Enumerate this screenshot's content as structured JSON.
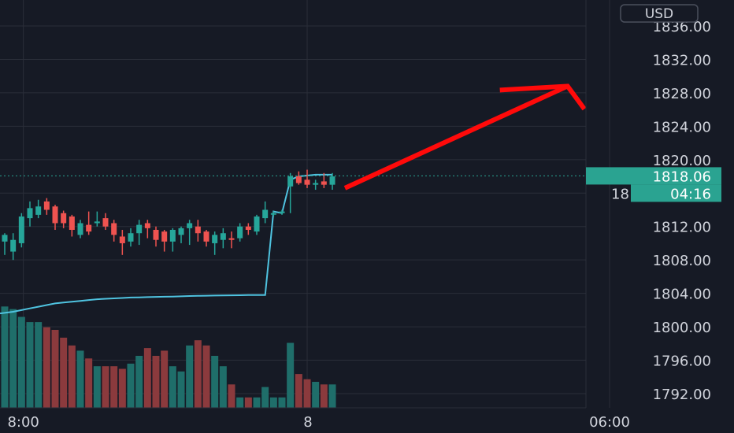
{
  "chart_data": {
    "type": "candlestick",
    "currency": "USD",
    "y_axis": {
      "min": 1790,
      "max": 1838,
      "ticks": [
        "1836.00",
        "1832.00",
        "1828.00",
        "1824.00",
        "1820.00",
        "1812.00",
        "1808.00",
        "1804.00",
        "1800.00",
        "1796.00",
        "1792.00"
      ],
      "tick_values": [
        1836,
        1832,
        1828,
        1824,
        1820,
        1812,
        1808,
        1804,
        1800,
        1796,
        1792
      ]
    },
    "x_axis": {
      "ticks": [
        {
          "label": "8:00",
          "bar": 1
        },
        {
          "label": "8",
          "bar": 36
        },
        {
          "label": "06:00",
          "bar": 72
        }
      ],
      "total_slots": 93
    },
    "current_price": {
      "value": 1818.06,
      "label": "1818.06",
      "partial_label": "18",
      "countdown": "04:16"
    },
    "candles": [
      {
        "o": 1810.2,
        "h": 1811.2,
        "l": 1808.6,
        "c": 1811.0
      },
      {
        "o": 1809.0,
        "h": 1811.2,
        "l": 1808.0,
        "c": 1810.4
      },
      {
        "o": 1810.0,
        "h": 1813.6,
        "l": 1809.5,
        "c": 1813.2
      },
      {
        "o": 1813.0,
        "h": 1815.0,
        "l": 1812.0,
        "c": 1814.2
      },
      {
        "o": 1813.4,
        "h": 1815.2,
        "l": 1813.0,
        "c": 1814.4
      },
      {
        "o": 1815.0,
        "h": 1815.4,
        "l": 1813.4,
        "c": 1814.0
      },
      {
        "o": 1814.4,
        "h": 1814.6,
        "l": 1811.6,
        "c": 1812.4
      },
      {
        "o": 1813.6,
        "h": 1813.9,
        "l": 1811.8,
        "c": 1812.4
      },
      {
        "o": 1813.2,
        "h": 1813.4,
        "l": 1810.8,
        "c": 1811.6
      },
      {
        "o": 1811.0,
        "h": 1812.8,
        "l": 1810.6,
        "c": 1812.4
      },
      {
        "o": 1812.2,
        "h": 1813.8,
        "l": 1811.0,
        "c": 1811.4
      },
      {
        "o": 1812.4,
        "h": 1813.8,
        "l": 1812.0,
        "c": 1812.6
      },
      {
        "o": 1813.0,
        "h": 1813.6,
        "l": 1811.6,
        "c": 1812.0
      },
      {
        "o": 1812.4,
        "h": 1812.8,
        "l": 1810.2,
        "c": 1811.0
      },
      {
        "o": 1810.8,
        "h": 1811.6,
        "l": 1808.6,
        "c": 1810.0
      },
      {
        "o": 1810.2,
        "h": 1811.8,
        "l": 1809.6,
        "c": 1811.2
      },
      {
        "o": 1811.2,
        "h": 1812.8,
        "l": 1809.8,
        "c": 1812.2
      },
      {
        "o": 1812.4,
        "h": 1812.8,
        "l": 1810.6,
        "c": 1811.8
      },
      {
        "o": 1811.6,
        "h": 1812.0,
        "l": 1809.6,
        "c": 1810.4
      },
      {
        "o": 1811.4,
        "h": 1811.6,
        "l": 1809.0,
        "c": 1810.2
      },
      {
        "o": 1810.2,
        "h": 1811.8,
        "l": 1809.0,
        "c": 1811.6
      },
      {
        "o": 1811.0,
        "h": 1812.0,
        "l": 1810.0,
        "c": 1811.8
      },
      {
        "o": 1811.8,
        "h": 1812.8,
        "l": 1809.8,
        "c": 1812.4
      },
      {
        "o": 1812.0,
        "h": 1812.8,
        "l": 1810.2,
        "c": 1811.2
      },
      {
        "o": 1811.4,
        "h": 1811.6,
        "l": 1809.6,
        "c": 1810.2
      },
      {
        "o": 1810.0,
        "h": 1811.4,
        "l": 1808.6,
        "c": 1811.0
      },
      {
        "o": 1810.4,
        "h": 1811.8,
        "l": 1809.4,
        "c": 1811.2
      },
      {
        "o": 1810.6,
        "h": 1811.4,
        "l": 1809.4,
        "c": 1810.4
      },
      {
        "o": 1810.6,
        "h": 1812.4,
        "l": 1810.2,
        "c": 1812.0
      },
      {
        "o": 1812.0,
        "h": 1812.4,
        "l": 1811.0,
        "c": 1811.6
      },
      {
        "o": 1811.4,
        "h": 1813.4,
        "l": 1811.0,
        "c": 1813.2
      },
      {
        "o": 1813.0,
        "h": 1815.0,
        "l": 1812.4,
        "c": 1814.0
      },
      {
        "o": 1813.6,
        "h": 1813.8,
        "l": 1813.2,
        "c": 1813.6
      },
      {
        "o": 1813.6,
        "h": 1814.0,
        "l": 1813.4,
        "c": 1813.8
      },
      {
        "o": 1816.8,
        "h": 1818.4,
        "l": 1813.6,
        "c": 1818.0
      },
      {
        "o": 1818.0,
        "h": 1818.6,
        "l": 1817.0,
        "c": 1817.2
      },
      {
        "o": 1817.6,
        "h": 1818.8,
        "l": 1816.6,
        "c": 1817.0
      },
      {
        "o": 1817.0,
        "h": 1817.6,
        "l": 1816.4,
        "c": 1817.2
      },
      {
        "o": 1817.4,
        "h": 1818.4,
        "l": 1816.6,
        "c": 1817.0
      },
      {
        "o": 1817.0,
        "h": 1818.4,
        "l": 1816.4,
        "c": 1818.0
      }
    ],
    "volume": [
      3.9,
      3.8,
      3.5,
      3.3,
      3.3,
      3.1,
      3.0,
      2.7,
      2.4,
      2.2,
      1.9,
      1.6,
      1.6,
      1.6,
      1.5,
      1.7,
      2.0,
      2.3,
      2.0,
      2.2,
      1.6,
      1.4,
      2.4,
      2.6,
      2.4,
      2.0,
      1.6,
      0.9,
      0.4,
      0.4,
      0.4,
      0.8,
      0.4,
      0.4,
      2.5,
      1.3,
      1.1,
      1.0,
      0.9,
      0.9
    ],
    "vwap": [
      1801.6,
      1801.8,
      1802.0,
      1802.2,
      1802.4,
      1802.6,
      1802.8,
      1802.9,
      1803.0,
      1803.1,
      1803.2,
      1803.3,
      1803.35,
      1803.4,
      1803.45,
      1803.5,
      1803.52,
      1803.55,
      1803.58,
      1803.6,
      1803.62,
      1803.65,
      1803.68,
      1803.7,
      1803.72,
      1803.74,
      1803.75,
      1803.77,
      1803.78,
      1803.8,
      1803.8,
      1803.8,
      1813.8,
      1813.6,
      1817.6,
      1818.0,
      1818.1,
      1818.2,
      1818.2,
      1818.2
    ],
    "annotation": {
      "type": "arrow",
      "from": {
        "bar": 40.5,
        "price": 1816.6
      },
      "to": {
        "bar": 67,
        "price": 1828.8
      },
      "head": {
        "bar": 69,
        "price": 1827.0
      }
    },
    "colors": {
      "background": "#161a25",
      "grid": "#2a2e39",
      "up": "#26a69a",
      "down": "#ef5350",
      "volume_up": "#1f6e6a",
      "volume_down": "#8b3a3d",
      "vwap": "#4fc3e0",
      "arrow": "#ff0a0a",
      "price_label": "#2aa391",
      "axis_text": "#d1d4dc"
    }
  }
}
